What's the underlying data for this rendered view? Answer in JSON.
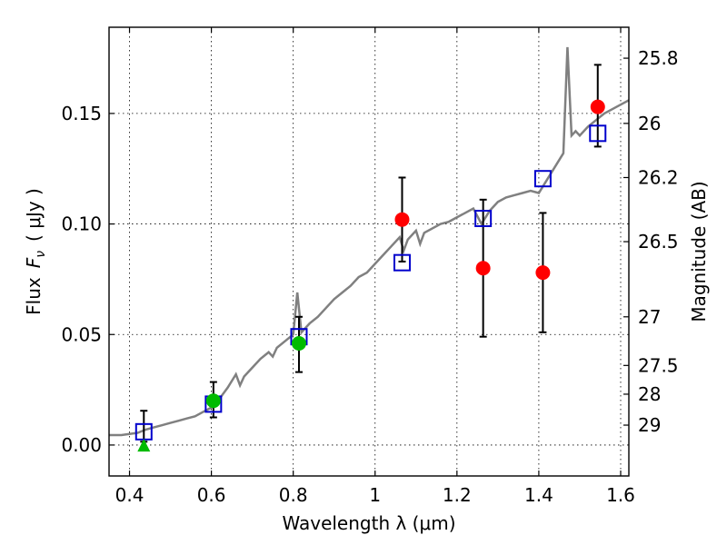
{
  "chart_data": {
    "type": "scatter",
    "xlabel": "Wavelength  λ (μm)",
    "ylabel": "Flux  F_ν  ( μJy )",
    "ylabel_parts": {
      "flux": "Flux",
      "symbol": "F",
      "subscript": "ν",
      "unit": "( μJy )"
    },
    "y2label": "Magnitude (AB)",
    "xlim": [
      0.35,
      1.62
    ],
    "ylim": [
      -0.014,
      0.189
    ],
    "x_ticks": [
      0.4,
      0.6,
      0.8,
      1.0,
      1.2,
      1.4,
      1.6
    ],
    "x_tick_labels": [
      "0.4",
      "0.6",
      "0.8",
      "1",
      "1.2",
      "1.4",
      "1.6"
    ],
    "y_ticks": [
      0.0,
      0.05,
      0.1,
      0.15
    ],
    "y_tick_labels": [
      "0.00",
      "0.05",
      "0.10",
      "0.15"
    ],
    "y2_ticks": [
      {
        "label": "25.8",
        "flux": 0.175
      },
      {
        "label": "26",
        "flux": 0.1455
      },
      {
        "label": "26.2",
        "flux": 0.121
      },
      {
        "label": "26.5",
        "flux": 0.092
      },
      {
        "label": "27",
        "flux": 0.058
      },
      {
        "label": "27.5",
        "flux": 0.036
      },
      {
        "label": "28",
        "flux": 0.023
      },
      {
        "label": "29",
        "flux": 0.009
      }
    ],
    "grid": true,
    "colors": {
      "spectrum": "#808080",
      "model_squares": "#0000cc",
      "red_points": "#ff0000",
      "green_points": "#00bb00",
      "error_bars": "#000000"
    },
    "spectrum": {
      "x": [
        0.35,
        0.38,
        0.4,
        0.42,
        0.44,
        0.46,
        0.48,
        0.5,
        0.52,
        0.54,
        0.56,
        0.58,
        0.6,
        0.62,
        0.64,
        0.65,
        0.66,
        0.67,
        0.68,
        0.7,
        0.72,
        0.74,
        0.75,
        0.76,
        0.78,
        0.8,
        0.81,
        0.82,
        0.84,
        0.86,
        0.88,
        0.9,
        0.92,
        0.94,
        0.96,
        0.98,
        1.0,
        1.02,
        1.04,
        1.06,
        1.07,
        1.08,
        1.1,
        1.11,
        1.12,
        1.14,
        1.16,
        1.18,
        1.2,
        1.22,
        1.24,
        1.26,
        1.28,
        1.3,
        1.32,
        1.34,
        1.36,
        1.38,
        1.4,
        1.42,
        1.44,
        1.46,
        1.47,
        1.48,
        1.49,
        1.5,
        1.52,
        1.54,
        1.56,
        1.58,
        1.6,
        1.62
      ],
      "y": [
        0.0045,
        0.0045,
        0.005,
        0.0055,
        0.007,
        0.008,
        0.009,
        0.01,
        0.011,
        0.012,
        0.013,
        0.015,
        0.017,
        0.021,
        0.026,
        0.029,
        0.032,
        0.027,
        0.031,
        0.035,
        0.039,
        0.042,
        0.04,
        0.044,
        0.047,
        0.05,
        0.069,
        0.051,
        0.055,
        0.058,
        0.062,
        0.066,
        0.069,
        0.072,
        0.076,
        0.078,
        0.082,
        0.086,
        0.09,
        0.094,
        0.088,
        0.093,
        0.097,
        0.091,
        0.096,
        0.098,
        0.1,
        0.101,
        0.103,
        0.105,
        0.107,
        0.1,
        0.106,
        0.11,
        0.112,
        0.113,
        0.114,
        0.115,
        0.114,
        0.12,
        0.126,
        0.132,
        0.18,
        0.14,
        0.142,
        0.14,
        0.144,
        0.147,
        0.15,
        0.152,
        0.154,
        0.156
      ]
    },
    "series": [
      {
        "marker": "square",
        "x": [
          0.435,
          0.605,
          0.814,
          1.066,
          1.264,
          1.41,
          1.544
        ],
        "y": [
          0.006,
          0.0185,
          0.049,
          0.0825,
          0.1025,
          0.1205,
          0.141
        ]
      },
      {
        "marker": "circle",
        "color": "red",
        "x": [
          1.066,
          1.264,
          1.41,
          1.544
        ],
        "y": [
          0.102,
          0.08,
          0.078,
          0.153
        ],
        "yerr_low": [
          0.083,
          0.049,
          0.051,
          0.135
        ],
        "yerr_high": [
          0.121,
          0.111,
          0.105,
          0.172
        ]
      },
      {
        "marker": "circle",
        "color": "green",
        "x": [
          0.605,
          0.814
        ],
        "y": [
          0.02,
          0.046
        ],
        "yerr_low": [
          0.0125,
          0.033
        ],
        "yerr_high": [
          0.0285,
          0.058
        ]
      },
      {
        "marker": "triangle",
        "color": "green",
        "x": [
          0.435
        ],
        "y": [
          -0.0005
        ],
        "yerr_low": [
          0.0015
        ],
        "yerr_high": [
          0.0155
        ]
      }
    ]
  }
}
